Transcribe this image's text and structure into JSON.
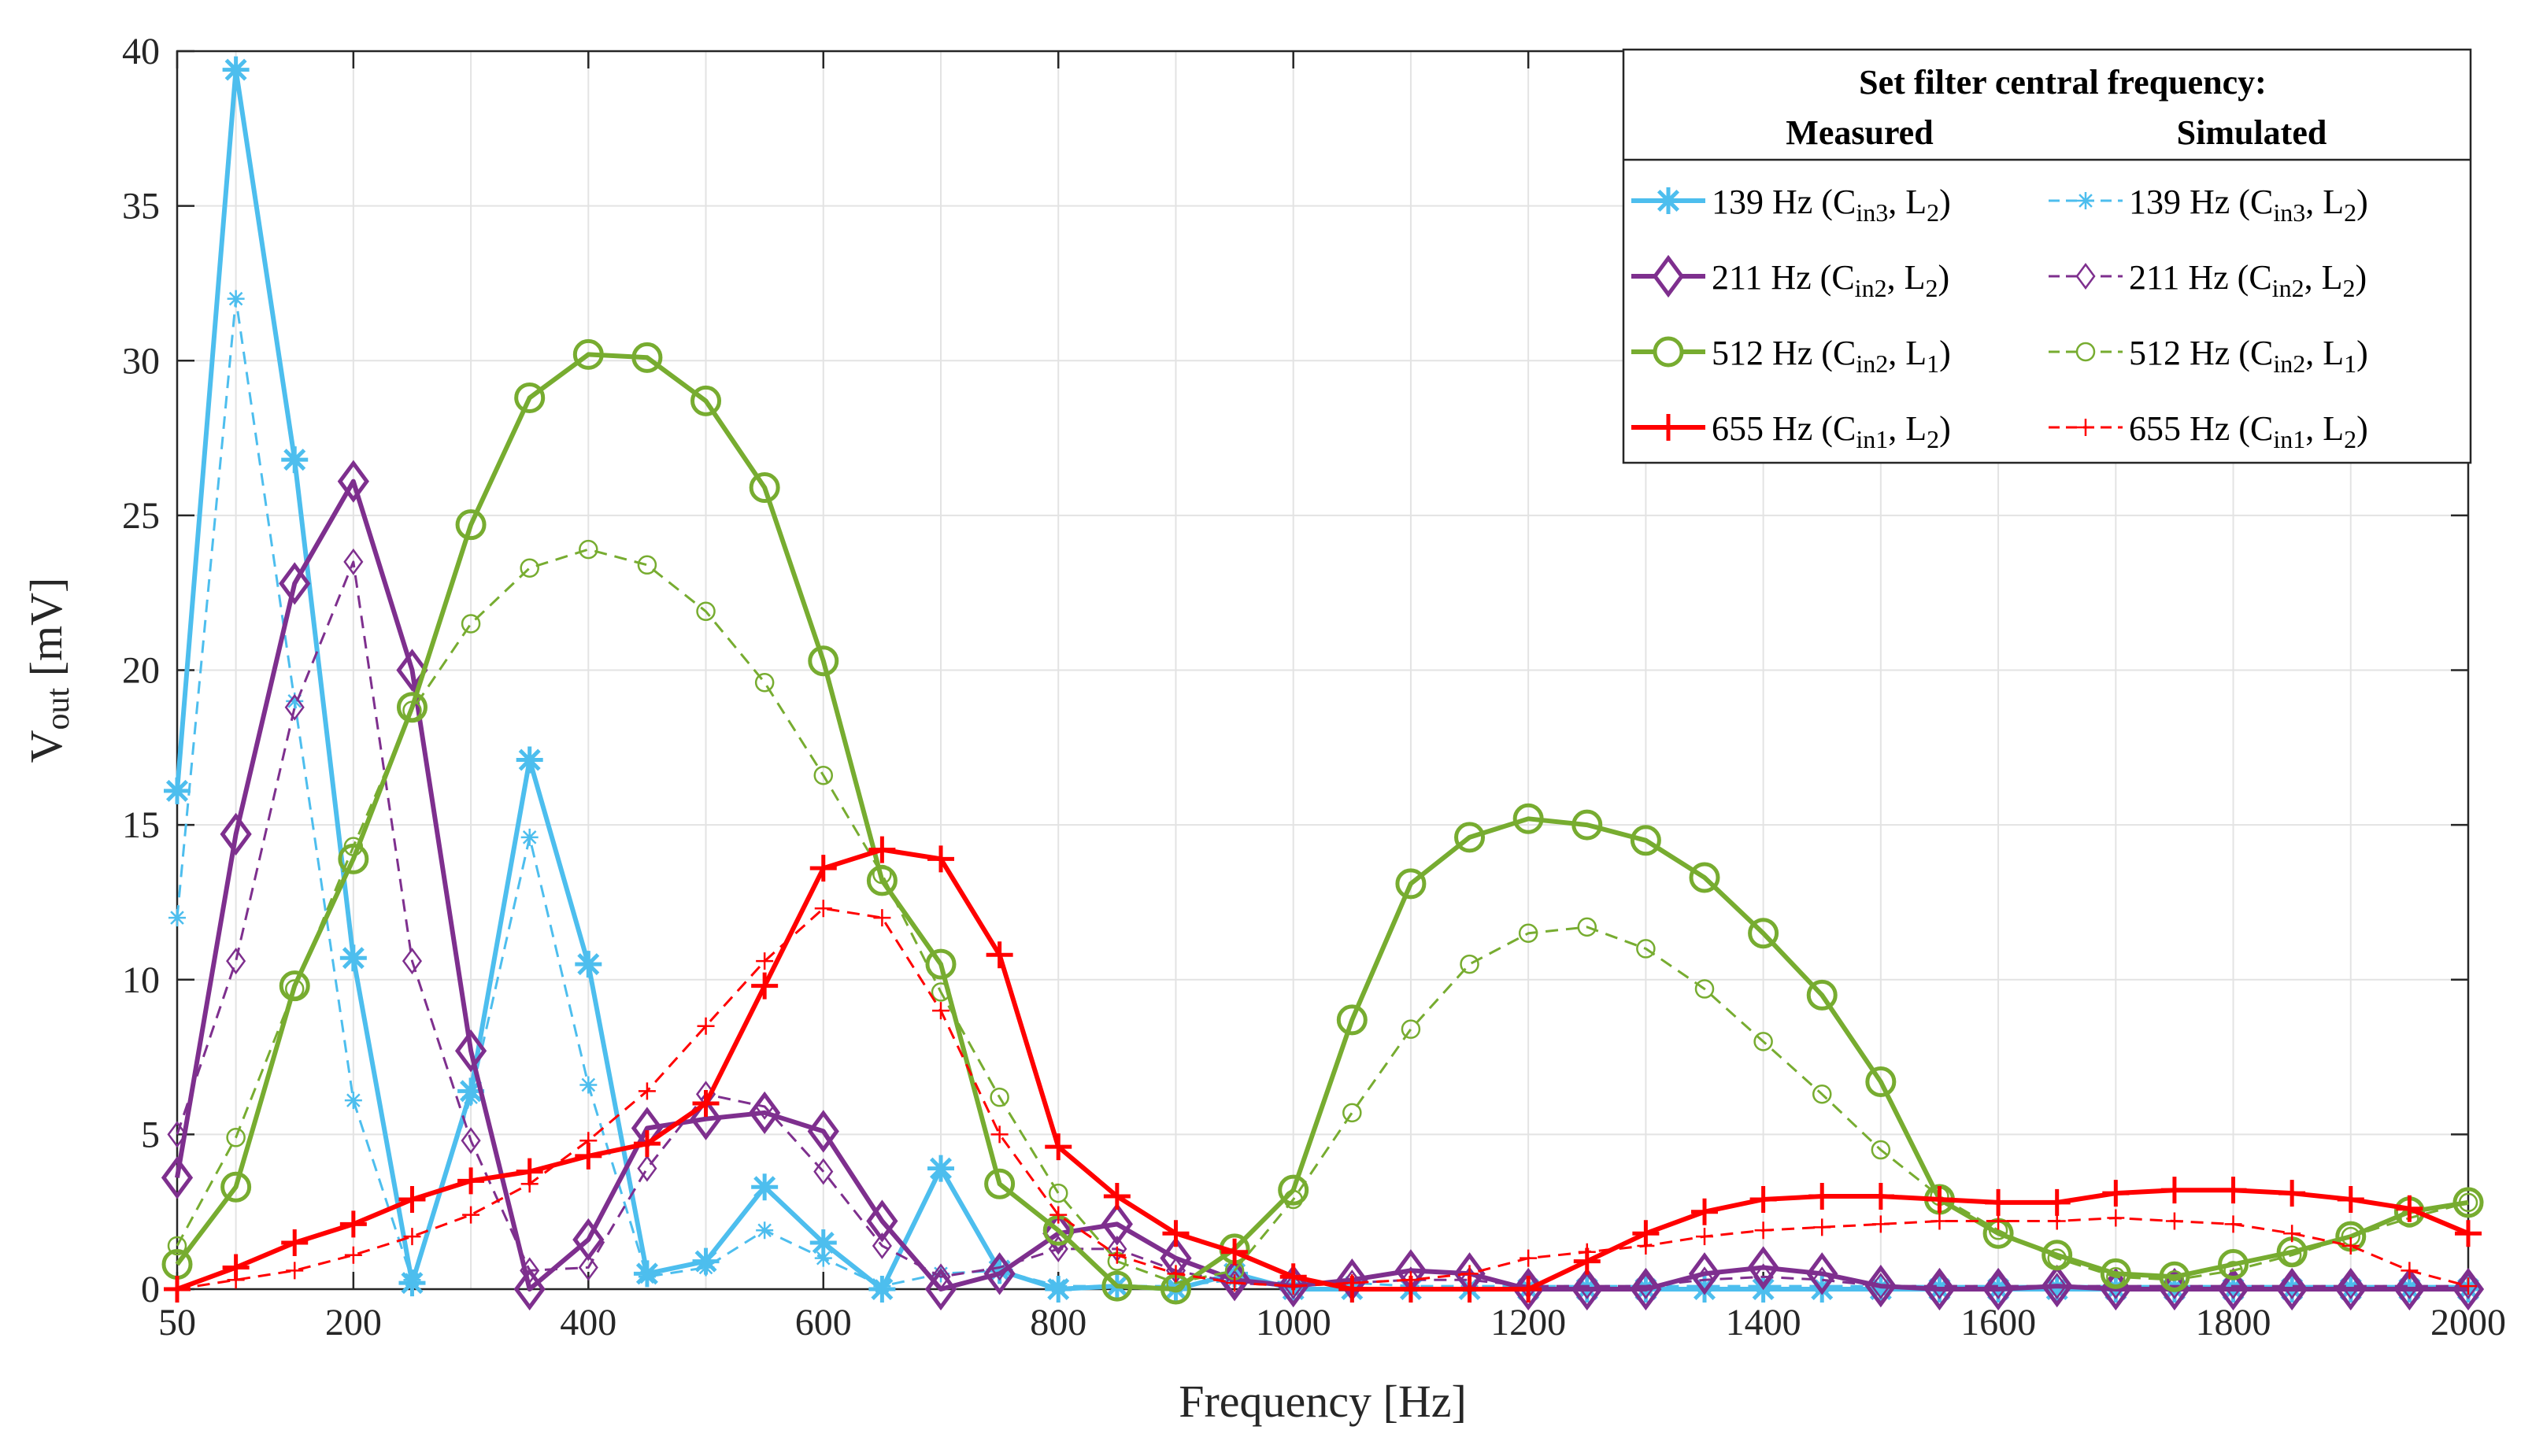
{
  "chart_data": {
    "type": "line",
    "title": "",
    "xlabel": "Frequency [Hz]",
    "ylabel": {
      "main": "V",
      "sub": "out",
      "unit": " [mV]"
    },
    "xlim": [
      50,
      2000
    ],
    "ylim": [
      0,
      40
    ],
    "xticks": [
      50,
      200,
      400,
      600,
      800,
      1000,
      1200,
      1400,
      1600,
      1800,
      2000
    ],
    "yticks": [
      0,
      5,
      10,
      15,
      20,
      25,
      30,
      35,
      40
    ],
    "grid": true,
    "legend": {
      "placement": "top-right",
      "title": "Set filter central frequency:",
      "col_measured": "Measured",
      "col_simulated": "Simulated"
    },
    "x": [
      50,
      100,
      150,
      200,
      250,
      300,
      350,
      400,
      450,
      500,
      550,
      600,
      650,
      700,
      750,
      800,
      850,
      900,
      950,
      1000,
      1050,
      1100,
      1150,
      1200,
      1250,
      1300,
      1350,
      1400,
      1450,
      1500,
      1550,
      1600,
      1650,
      1700,
      1750,
      1800,
      1850,
      1900,
      1950,
      2000
    ],
    "series": [
      {
        "name": "139 Hz (Cin3, L2)",
        "label": {
          "pre": "139 Hz (C",
          "sub1": "in3",
          "mid": ", L",
          "sub2": "2",
          "post": ")"
        },
        "kind": "measured",
        "color": "#4DBEEE",
        "marker": "asterisk",
        "values": [
          16.1,
          39.4,
          26.8,
          10.7,
          0.2,
          6.4,
          17.1,
          10.5,
          0.5,
          0.9,
          3.3,
          1.5,
          0,
          3.9,
          0.6,
          0,
          0.1,
          0,
          0.5,
          0,
          0,
          0,
          0,
          0,
          0,
          0,
          0,
          0,
          0,
          0,
          0,
          0,
          0,
          0,
          0,
          0,
          0,
          0,
          0,
          0
        ]
      },
      {
        "name": "139 Hz (Cin3, L2)",
        "label": {
          "pre": "139 Hz (C",
          "sub1": "in3",
          "mid": ", L",
          "sub2": "2",
          "post": ")"
        },
        "kind": "simulated",
        "color": "#4DBEEE",
        "marker": "asterisk",
        "values": [
          12.0,
          32.0,
          19.0,
          6.1,
          0.3,
          6.2,
          14.6,
          6.6,
          0.4,
          0.7,
          1.9,
          1.0,
          0.1,
          0.5,
          0.6,
          0.1,
          0.1,
          0.1,
          0.3,
          0.2,
          0.2,
          0.1,
          0.1,
          0.1,
          0.1,
          0.1,
          0.1,
          0.1,
          0.1,
          0.1,
          0.1,
          0.1,
          0.1,
          0.1,
          0.1,
          0.1,
          0.1,
          0.1,
          0.1,
          0.1
        ]
      },
      {
        "name": "211 Hz (Cin2, L2)",
        "label": {
          "pre": "211 Hz (C",
          "sub1": "in2",
          "mid": ", L",
          "sub2": "2",
          "post": ")"
        },
        "kind": "measured",
        "color": "#7E2F8E",
        "marker": "diamond",
        "values": [
          3.6,
          14.7,
          22.8,
          26.1,
          20.0,
          7.7,
          0,
          1.6,
          5.2,
          5.5,
          5.7,
          5.1,
          2.2,
          0,
          0.5,
          1.8,
          2.1,
          1.0,
          0.3,
          0.1,
          0.3,
          0.6,
          0.5,
          0,
          0,
          0,
          0.5,
          0.7,
          0.5,
          0.1,
          0,
          0,
          0.1,
          0,
          0,
          0,
          0,
          0,
          0,
          0
        ]
      },
      {
        "name": "211 Hz (Cin2, L2)",
        "label": {
          "pre": "211 Hz (C",
          "sub1": "in2",
          "mid": ", L",
          "sub2": "2",
          "post": ")"
        },
        "kind": "simulated",
        "color": "#7E2F8E",
        "marker": "diamond",
        "values": [
          5.0,
          10.6,
          18.8,
          23.5,
          10.6,
          4.8,
          0.6,
          0.7,
          3.9,
          6.3,
          5.9,
          3.8,
          1.4,
          0.4,
          0.7,
          1.3,
          1.3,
          0.6,
          0.2,
          0.1,
          0.2,
          0.3,
          0.3,
          0.1,
          0.1,
          0.1,
          0.3,
          0.4,
          0.3,
          0.1,
          0.1,
          0.1,
          0.1,
          0.1,
          0.1,
          0.1,
          0.1,
          0.1,
          0.1,
          0.1
        ]
      },
      {
        "name": "512 Hz (Cin2, L1)",
        "label": {
          "pre": "512 Hz (C",
          "sub1": "in2",
          "mid": ", L",
          "sub2": "1",
          "post": ")"
        },
        "kind": "measured",
        "color": "#77AC30",
        "marker": "circle",
        "values": [
          0.8,
          3.3,
          9.8,
          13.9,
          18.8,
          24.7,
          28.8,
          30.2,
          30.1,
          28.7,
          25.9,
          20.3,
          13.2,
          10.5,
          3.4,
          1.9,
          0.1,
          0,
          1.3,
          3.2,
          8.7,
          13.1,
          14.6,
          15.2,
          15.0,
          14.5,
          13.3,
          11.5,
          9.5,
          6.7,
          2.9,
          1.8,
          1.1,
          0.5,
          0.4,
          0.8,
          1.2,
          1.7,
          2.5,
          2.8
        ]
      },
      {
        "name": "512 Hz (Cin2, L1)",
        "label": {
          "pre": "512 Hz (C",
          "sub1": "in2",
          "mid": ", L",
          "sub2": "1",
          "post": ")"
        },
        "kind": "simulated",
        "color": "#77AC30",
        "marker": "circle",
        "values": [
          1.4,
          4.9,
          9.7,
          14.3,
          18.7,
          21.5,
          23.3,
          23.9,
          23.4,
          21.9,
          19.6,
          16.6,
          13.4,
          9.6,
          6.2,
          3.1,
          0.9,
          0.2,
          0.6,
          2.9,
          5.7,
          8.4,
          10.5,
          11.5,
          11.7,
          11.0,
          9.7,
          8.0,
          6.3,
          4.5,
          3.0,
          1.9,
          1.0,
          0.4,
          0.3,
          0.6,
          1.1,
          1.7,
          2.3,
          2.8
        ]
      },
      {
        "name": "655 Hz (Cin1, L2)",
        "label": {
          "pre": "655 Hz (C",
          "sub1": "in1",
          "mid": ", L",
          "sub2": "2",
          "post": ")"
        },
        "kind": "measured",
        "color": "#FF0000",
        "marker": "plus",
        "values": [
          0,
          0.7,
          1.5,
          2.1,
          2.9,
          3.5,
          3.8,
          4.3,
          4.7,
          6.0,
          9.8,
          13.6,
          14.2,
          13.9,
          10.8,
          4.6,
          3.0,
          1.8,
          1.2,
          0.4,
          0,
          0,
          0,
          0,
          0.9,
          1.8,
          2.5,
          2.9,
          3.0,
          3.0,
          2.9,
          2.8,
          2.8,
          3.1,
          3.2,
          3.2,
          3.1,
          2.9,
          2.6,
          1.8
        ]
      },
      {
        "name": "655 Hz (Cin1, L2)",
        "label": {
          "pre": "655 Hz (C",
          "sub1": "in1",
          "mid": ", L",
          "sub2": "2",
          "post": ")"
        },
        "kind": "simulated",
        "color": "#FF0000",
        "marker": "plus",
        "values": [
          0,
          0.3,
          0.6,
          1.1,
          1.7,
          2.4,
          3.4,
          4.8,
          6.4,
          8.5,
          10.6,
          12.3,
          12.0,
          9.0,
          5.0,
          2.4,
          1.1,
          0.5,
          0.2,
          0.1,
          0.2,
          0.3,
          0.5,
          1.0,
          1.2,
          1.4,
          1.7,
          1.9,
          2.0,
          2.1,
          2.2,
          2.2,
          2.2,
          2.3,
          2.2,
          2.1,
          1.8,
          1.4,
          0.6,
          0.1
        ]
      }
    ]
  }
}
